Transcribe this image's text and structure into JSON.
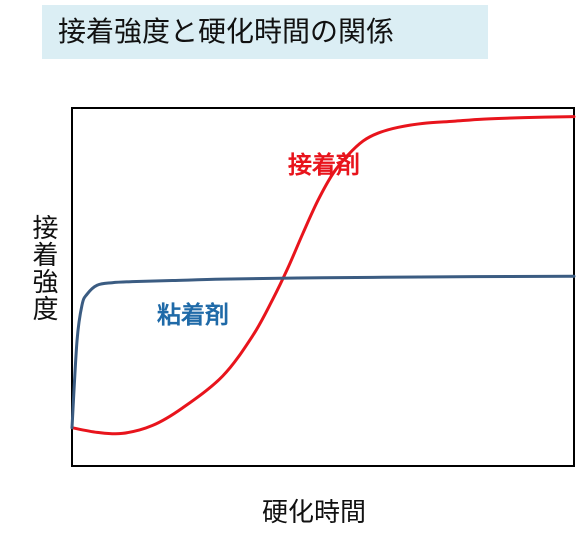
{
  "chart_data": {
    "type": "line",
    "title": "接着強度と硬化時間の関係",
    "xlabel": "硬化時間",
    "ylabel": "接着強度",
    "xlim": [
      0,
      1
    ],
    "ylim": [
      0,
      1
    ],
    "grid": false,
    "legend": "inline labels",
    "series": [
      {
        "name": "接着剤",
        "color": "#e8141c",
        "label_position": "upper-middle",
        "x": [
          0.0,
          0.05,
          0.1,
          0.16,
          0.22,
          0.3,
          0.36,
          0.4,
          0.43,
          0.46,
          0.49,
          0.52,
          0.55,
          0.58,
          0.61,
          0.65,
          0.7,
          0.76,
          0.82,
          0.9,
          1.0
        ],
        "y": [
          0.107,
          0.094,
          0.091,
          0.113,
          0.162,
          0.251,
          0.364,
          0.466,
          0.553,
          0.65,
          0.742,
          0.817,
          0.869,
          0.908,
          0.93,
          0.946,
          0.957,
          0.963,
          0.969,
          0.973,
          0.976
        ]
      },
      {
        "name": "粘着剤",
        "color": "#3b5c82",
        "label_position": "middle-left",
        "x": [
          0.0,
          0.01,
          0.02,
          0.03,
          0.05,
          0.08,
          0.12,
          0.2,
          0.3,
          0.45,
          0.6,
          0.8,
          1.0
        ],
        "y": [
          0.107,
          0.35,
          0.45,
          0.48,
          0.505,
          0.512,
          0.515,
          0.518,
          0.522,
          0.525,
          0.527,
          0.529,
          0.53
        ]
      }
    ]
  }
}
